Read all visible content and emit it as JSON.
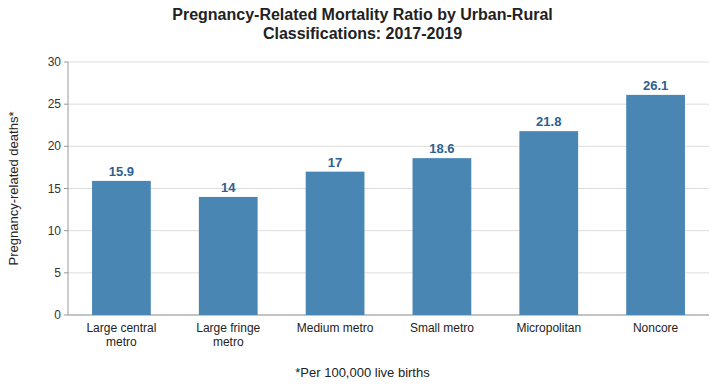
{
  "chart_data": {
    "type": "bar",
    "title": "Pregnancy-Related Mortality Ratio by Urban-Rural\nClassifications: 2017-2019",
    "categories": [
      "Large central\nmetro",
      "Large fringe\nmetro",
      "Medium metro",
      "Small metro",
      "Micropolitan",
      "Noncore"
    ],
    "values": [
      15.9,
      14,
      17,
      18.6,
      21.8,
      26.1
    ],
    "color": "#4a86b4",
    "ylabel": "Pregnancy-related deaths*",
    "footnote": "*Per 100,000 live births",
    "ylim": [
      0,
      30
    ],
    "yticks": [
      0,
      5,
      10,
      15,
      20,
      25,
      30
    ],
    "grid": true,
    "data_labels": true
  }
}
